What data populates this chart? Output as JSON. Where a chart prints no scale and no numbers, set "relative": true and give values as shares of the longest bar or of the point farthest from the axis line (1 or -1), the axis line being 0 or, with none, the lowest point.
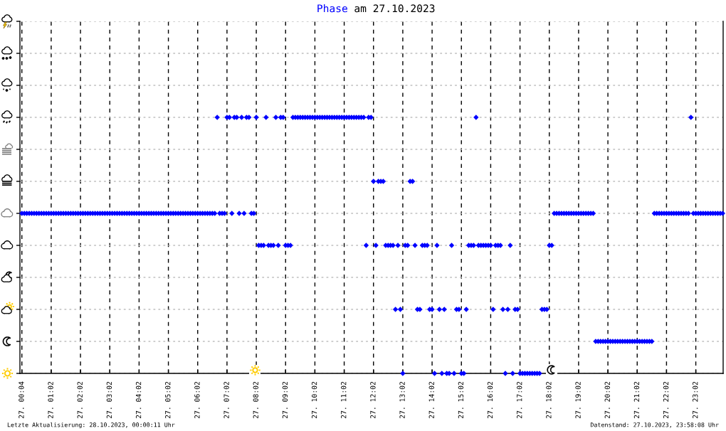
{
  "chart_data": {
    "type": "scatter",
    "title": "Phase am 27.10.2023",
    "annotations": [
      "Letzte Aktualisierung: 28.10.2023, 00:00:11 Uhr",
      "Datenstand: 27.10.2023, 23:58:08 Uhr"
    ],
    "relative": true,
    "tick_labels": "x",
    "grid": true,
    "marker": "diamond",
    "color": "#0000ff",
    "categories": [
      "27. 00:04",
      null,
      null,
      null,
      null,
      null,
      null,
      null,
      null,
      null,
      null,
      null,
      "27. 01:02",
      null,
      null,
      null,
      null,
      null,
      null,
      null,
      null,
      null,
      null,
      null,
      "27. 02:02",
      null,
      null,
      null,
      null,
      null,
      null,
      null,
      null,
      null,
      null,
      null,
      "27. 03:02",
      null,
      null,
      null,
      null,
      null,
      null,
      null,
      null,
      null,
      null,
      null,
      "27. 04:02",
      null,
      null,
      null,
      null,
      null,
      null,
      null,
      null,
      null,
      null,
      null,
      "27. 05:02",
      null,
      null,
      null,
      null,
      null,
      null,
      null,
      null,
      null,
      null,
      null,
      "27. 06:02",
      null,
      null,
      null,
      null,
      null,
      null,
      null,
      null,
      null,
      null,
      null,
      "27. 07:02",
      null,
      null,
      null,
      null,
      null,
      null,
      null,
      null,
      null,
      null,
      null,
      "27. 08:02",
      null,
      null,
      null,
      null,
      null,
      null,
      null,
      null,
      null,
      null,
      null,
      "27. 09:02",
      null,
      null,
      null,
      null,
      null,
      null,
      null,
      null,
      null,
      null,
      null,
      "27. 10:02",
      null,
      null,
      null,
      null,
      null,
      null,
      null,
      null,
      null,
      null,
      null,
      "27. 11:02",
      null,
      null,
      null,
      null,
      null,
      null,
      null,
      null,
      null,
      null,
      null,
      "27. 12:02",
      null,
      null,
      null,
      null,
      null,
      null,
      null,
      null,
      null,
      null,
      null,
      "27. 13:02",
      null,
      null,
      null,
      null,
      null,
      null,
      null,
      null,
      null,
      null,
      null,
      "27. 14:02",
      null,
      null,
      null,
      null,
      null,
      null,
      null,
      null,
      null,
      null,
      null,
      "27. 15:02",
      null,
      null,
      null,
      null,
      null,
      null,
      null,
      null,
      null,
      null,
      null,
      "27. 16:02",
      null,
      null,
      null,
      null,
      null,
      null,
      null,
      null,
      null,
      null,
      null,
      "27. 17:02",
      null,
      null,
      null,
      null,
      null,
      null,
      null,
      null,
      null,
      null,
      null,
      "27. 18:02",
      null,
      null,
      null,
      null,
      null,
      null,
      null,
      null,
      null,
      null,
      null,
      "27. 19:02",
      null,
      null,
      null,
      null,
      null,
      null,
      null,
      null,
      null,
      null,
      null,
      "27. 20:02",
      null,
      null,
      null,
      null,
      null,
      null,
      null,
      null,
      null,
      null,
      null,
      "27. 21:02",
      null,
      null,
      null,
      null,
      null,
      null,
      null,
      null,
      null,
      null,
      null,
      "27. 22:02",
      null,
      null,
      null,
      null,
      null,
      null,
      null,
      null,
      null,
      null,
      null,
      "27. 23:02",
      null,
      null,
      null,
      null,
      null,
      null,
      null,
      null,
      null,
      null,
      null
    ],
    "values": [
      0.625,
      0.625,
      0.625,
      0.625,
      0.625,
      0.625,
      0.625,
      0.625,
      0.625,
      0.625,
      0.625,
      0.625,
      0.625,
      0.625,
      0.625,
      0.625,
      0.625,
      0.625,
      0.625,
      0.625,
      0.625,
      0.625,
      0.625,
      0.625,
      0.625,
      0.625,
      0.625,
      0.625,
      0.625,
      0.625,
      0.625,
      0.625,
      0.625,
      0.625,
      0.625,
      0.625,
      0.625,
      0.625,
      0.625,
      0.625,
      0.625,
      0.625,
      0.625,
      0.625,
      0.625,
      0.625,
      0.625,
      0.625,
      0.625,
      0.625,
      0.625,
      0.625,
      0.625,
      0.625,
      0.625,
      0.625,
      0.625,
      0.625,
      0.625,
      0.625,
      0.625,
      0.625,
      0.625,
      0.625,
      0.625,
      0.625,
      0.625,
      0.625,
      0.625,
      0.625,
      0.625,
      0.625,
      0.625,
      0.625,
      0.625,
      0.625,
      0.625,
      0.625,
      0.625,
      0.625,
      1,
      0.625,
      0.625,
      0.625,
      1,
      1,
      0.625,
      1,
      1,
      0.625,
      1,
      0.625,
      1,
      1,
      0.625,
      0.625,
      1,
      0.5,
      0.5,
      0.5,
      1,
      0.5,
      0.5,
      0.5,
      1,
      0.5,
      1,
      1,
      0.5,
      0.5,
      0.5,
      1,
      1,
      1,
      1,
      1,
      1,
      1,
      1,
      1,
      1,
      1,
      1,
      1,
      1,
      1,
      1,
      1,
      1,
      1,
      1,
      1,
      1,
      1,
      1,
      1,
      1,
      1,
      1,
      1,
      1,
      0.5,
      1,
      1,
      0.75,
      0.5,
      0.75,
      0.75,
      0.75,
      0.5,
      0.5,
      0.5,
      0.5,
      0.25,
      0.5,
      0.25,
      0,
      0.5,
      0.5,
      0.75,
      0.75,
      0.5,
      0.25,
      0.25,
      0.5,
      0.5,
      0.5,
      0.25,
      0.25,
      0,
      0.5,
      0.25,
      0,
      0.25,
      0,
      0,
      0.5,
      0,
      0.25,
      0.25,
      0,
      0,
      0.25,
      0.5,
      0.5,
      0.5,
      1,
      0.5,
      0.5,
      0.5,
      0.5,
      0.5,
      0.5,
      0.25,
      0.5,
      0.5,
      0.5,
      0.25,
      0,
      0.25,
      0.5,
      0,
      0.25,
      0.25,
      0,
      0,
      0,
      0,
      0,
      0,
      0,
      0,
      0,
      0.25,
      0.25,
      0.25,
      0.5,
      0.5,
      0.625,
      0.625,
      0.625,
      0.625,
      0.625,
      0.625,
      0.625,
      0.625,
      0.625,
      0.625,
      0.625,
      0.625,
      0.625,
      0.625,
      0.625,
      0.625,
      0.625,
      0.125,
      0.125,
      0.125,
      0.125,
      0.125,
      0.125,
      0.125,
      0.125,
      0.125,
      0.125,
      0.125,
      0.125,
      0.125,
      0.125,
      0.125,
      0.125,
      0.125,
      0.125,
      0.125,
      0.125,
      0.125,
      0.125,
      0.125,
      0.125,
      0.625,
      0.625,
      0.625,
      0.625,
      0.625,
      0.625,
      0.625,
      0.625,
      0.625,
      0.625,
      0.625,
      0.625,
      0.625,
      0.625,
      0.625,
      1,
      0.625,
      0.625,
      0.625,
      0.625,
      0.625,
      0.625,
      0.625,
      0.625,
      0.625,
      0.625,
      0.625,
      0.625,
      0.625
    ]
  }
}
